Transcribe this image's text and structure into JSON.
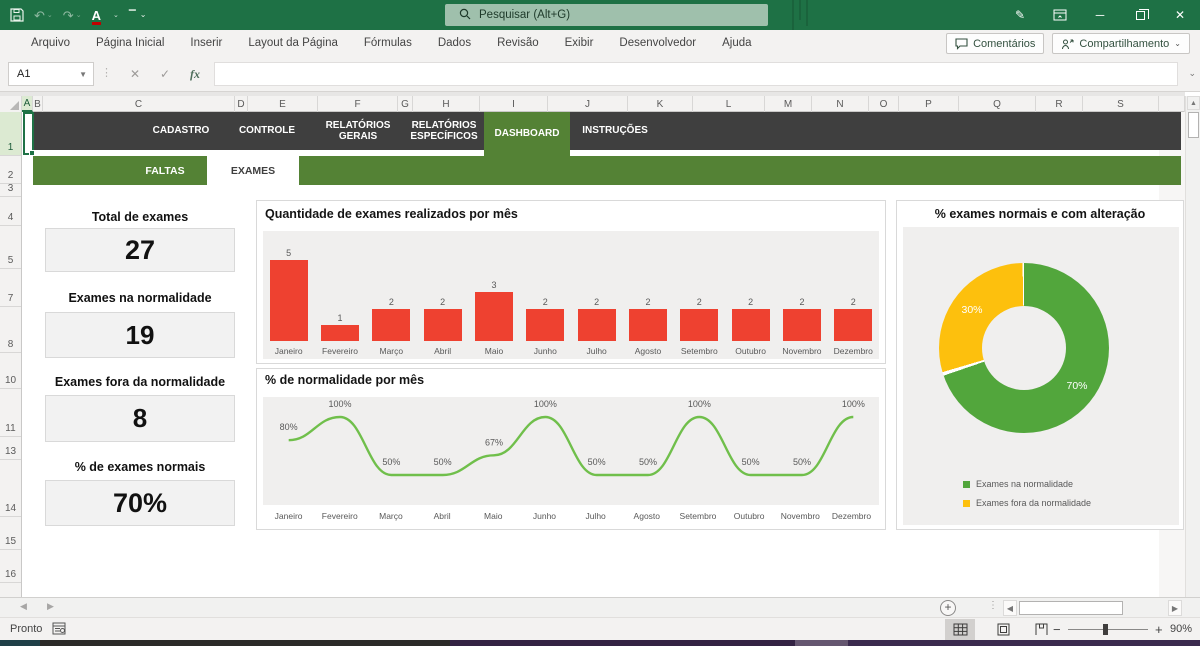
{
  "app": {
    "search_placeholder": "Pesquisar (Alt+G)",
    "menu_tabs": [
      "Arquivo",
      "Página Inicial",
      "Inserir",
      "Layout da Página",
      "Fórmulas",
      "Dados",
      "Revisão",
      "Exibir",
      "Desenvolvedor",
      "Ajuda"
    ],
    "comments_label": "Comentários",
    "share_label": "Compartilhamento",
    "name_box": "A1",
    "formula_value": "",
    "status_ready": "Pronto",
    "zoom_level": "90%",
    "columns": [
      "A",
      "B",
      "C",
      "D",
      "E",
      "F",
      "G",
      "H",
      "I",
      "J",
      "K",
      "L",
      "M",
      "N",
      "O",
      "P",
      "Q",
      "R",
      "S"
    ],
    "rows": [
      "1",
      "2",
      "3",
      "4",
      "5",
      "7",
      "8",
      "10",
      "11",
      "13",
      "14",
      "15",
      "16"
    ],
    "selected_column": "A",
    "selected_row": "1"
  },
  "nav": {
    "tabs": [
      {
        "label": "CADASTRO",
        "active": false
      },
      {
        "label": "CONTROLE",
        "active": false
      },
      {
        "label": "RELATÓRIOS GERAIS",
        "active": false
      },
      {
        "label": "RELATÓRIOS ESPECÍFICOS",
        "active": false
      },
      {
        "label": "DASHBOARD",
        "active": true
      },
      {
        "label": "INSTRUÇÕES",
        "active": false
      }
    ],
    "subtabs": [
      {
        "label": "FALTAS",
        "active": false
      },
      {
        "label": "EXAMES",
        "active": true
      }
    ]
  },
  "metrics": [
    {
      "label": "Total de exames",
      "value": "27"
    },
    {
      "label": "Exames na normalidade",
      "value": "19"
    },
    {
      "label": "Exames fora da normalidade",
      "value": "8"
    },
    {
      "label": "% de exames normais",
      "value": "70%"
    }
  ],
  "chart_data": [
    {
      "type": "bar",
      "title": "Quantidade de exames realizados por mês",
      "categories": [
        "Janeiro",
        "Fevereiro",
        "Março",
        "Abril",
        "Maio",
        "Junho",
        "Julho",
        "Agosto",
        "Setembro",
        "Outubro",
        "Novembro",
        "Dezembro"
      ],
      "values": [
        5,
        1,
        2,
        2,
        3,
        2,
        2,
        2,
        2,
        2,
        2,
        2
      ],
      "ylim": [
        0,
        5
      ],
      "grid": false,
      "legend": "none"
    },
    {
      "type": "line",
      "title": "% de normalidade por mês",
      "categories": [
        "Janeiro",
        "Fevereiro",
        "Março",
        "Abril",
        "Maio",
        "Junho",
        "Julho",
        "Agosto",
        "Setembro",
        "Outubro",
        "Novembro",
        "Dezembro"
      ],
      "values": [
        80,
        100,
        50,
        50,
        67,
        100,
        50,
        50,
        100,
        50,
        50,
        100
      ],
      "data_labels": [
        "80%",
        "100%",
        "50%",
        "50%",
        "67%",
        "100%",
        "50%",
        "50%",
        "100%",
        "50%",
        "50%",
        "100%"
      ],
      "ylim": [
        0,
        100
      ],
      "smooth": true,
      "grid": false,
      "legend": "none"
    },
    {
      "type": "donut",
      "title": "% exames normais e com alteração",
      "slices": [
        {
          "label": "Exames na normalidade",
          "value": 70,
          "text": "70%",
          "color": "#52a63c"
        },
        {
          "label": "Exames fora da normalidade",
          "value": 30,
          "text": "30%",
          "color": "#fdc00d"
        }
      ],
      "legend_position": "bottom"
    }
  ],
  "colors": {
    "accent_green": "#1e7145",
    "band_green": "#548235",
    "nav_dark": "#3f3f3f",
    "bar_red": "#ee4130",
    "line_green": "#70bf4b",
    "donut_green": "#52a63c",
    "donut_yellow": "#fdc00d"
  }
}
